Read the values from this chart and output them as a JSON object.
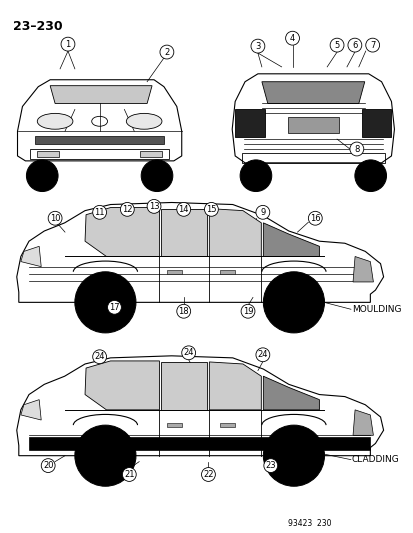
{
  "title": "23–230",
  "background_color": "#ffffff",
  "figure_width": 4.14,
  "figure_height": 5.33,
  "dpi": 100,
  "page_number": "93423  230",
  "moulding_label": "MOULDING",
  "cladding_label": "CLADDING"
}
